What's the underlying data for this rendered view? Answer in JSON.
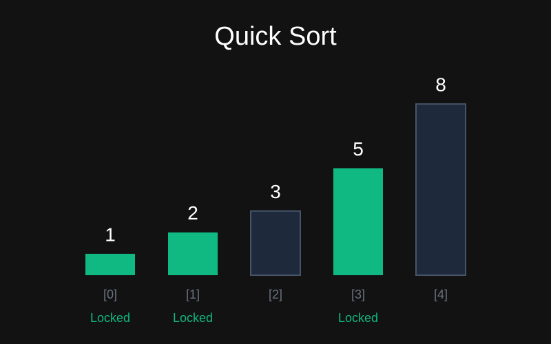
{
  "chart_data": {
    "type": "bar",
    "title": "Quick Sort",
    "categories": [
      "[0]",
      "[1]",
      "[2]",
      "[3]",
      "[4]"
    ],
    "values": [
      1,
      2,
      3,
      5,
      8
    ],
    "colors": [
      "#10b981",
      "#10b981",
      "#1e293b",
      "#10b981",
      "#1e293b"
    ],
    "status": [
      "Locked",
      "Locked",
      null,
      "Locked",
      null
    ]
  }
}
